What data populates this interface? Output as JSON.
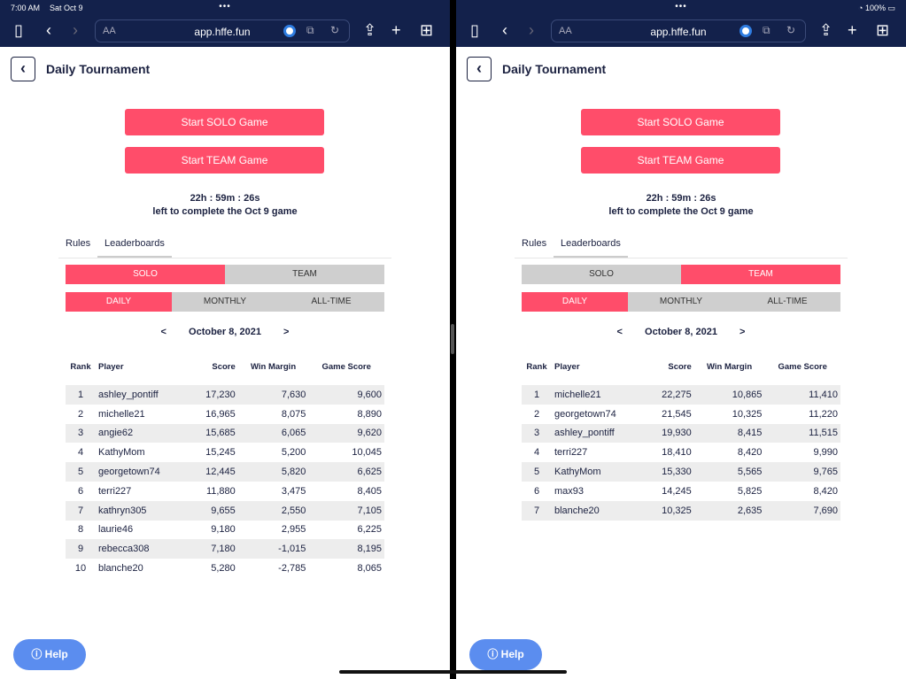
{
  "status": {
    "time": "7:00 AM",
    "date": "Sat Oct 9",
    "battery": "100%"
  },
  "browser": {
    "url": "app.hffe.fun",
    "text_size": "AA"
  },
  "colors": {
    "accent": "#ff4d6a",
    "nav": "#13214b",
    "help": "#5b8def"
  },
  "page": {
    "title": "Daily Tournament",
    "solo_button": "Start SOLO Game",
    "team_button": "Start TEAM Game",
    "timer": "22h : 59m : 26s",
    "timer_sub": "left to complete the Oct 9 game",
    "tabs": [
      "Rules",
      "Leaderboards"
    ],
    "modes": [
      "SOLO",
      "TEAM"
    ],
    "periods": [
      "DAILY",
      "MONTHLY",
      "ALL-TIME"
    ],
    "date": "October 8, 2021",
    "prev": "<",
    "next": ">",
    "help": "Help",
    "columns": [
      "Rank",
      "Player",
      "Score",
      "Win Margin",
      "Game Score"
    ]
  },
  "panes": [
    {
      "mode": "SOLO",
      "period": "DAILY",
      "rows": [
        [
          "1",
          "ashley_pontiff",
          "17,230",
          "7,630",
          "9,600"
        ],
        [
          "2",
          "michelle21",
          "16,965",
          "8,075",
          "8,890"
        ],
        [
          "3",
          "angie62",
          "15,685",
          "6,065",
          "9,620"
        ],
        [
          "4",
          "KathyMom",
          "15,245",
          "5,200",
          "10,045"
        ],
        [
          "5",
          "georgetown74",
          "12,445",
          "5,820",
          "6,625"
        ],
        [
          "6",
          "terri227",
          "11,880",
          "3,475",
          "8,405"
        ],
        [
          "7",
          "kathryn305",
          "9,655",
          "2,550",
          "7,105"
        ],
        [
          "8",
          "laurie46",
          "9,180",
          "2,955",
          "6,225"
        ],
        [
          "9",
          "rebecca308",
          "7,180",
          "-1,015",
          "8,195"
        ],
        [
          "10",
          "blanche20",
          "5,280",
          "-2,785",
          "8,065"
        ]
      ]
    },
    {
      "mode": "TEAM",
      "period": "DAILY",
      "rows": [
        [
          "1",
          "michelle21",
          "22,275",
          "10,865",
          "11,410"
        ],
        [
          "2",
          "georgetown74",
          "21,545",
          "10,325",
          "11,220"
        ],
        [
          "3",
          "ashley_pontiff",
          "19,930",
          "8,415",
          "11,515"
        ],
        [
          "4",
          "terri227",
          "18,410",
          "8,420",
          "9,990"
        ],
        [
          "5",
          "KathyMom",
          "15,330",
          "5,565",
          "9,765"
        ],
        [
          "6",
          "max93",
          "14,245",
          "5,825",
          "8,420"
        ],
        [
          "7",
          "blanche20",
          "10,325",
          "2,635",
          "7,690"
        ]
      ]
    }
  ]
}
